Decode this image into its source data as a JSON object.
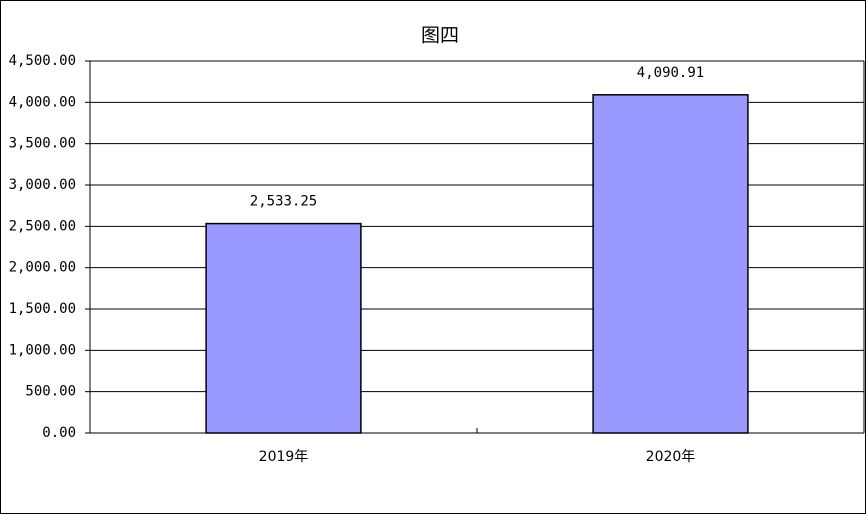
{
  "chart_data": {
    "type": "bar",
    "title": "图四",
    "categories": [
      "2019年",
      "2020年"
    ],
    "values": [
      2533.25,
      4090.91
    ],
    "value_labels": [
      "2,533.25",
      "4,090.91"
    ],
    "color": "#9999ff",
    "ylim": [
      0,
      4500
    ],
    "yticks": [
      {
        "value": 0,
        "label": "0.00"
      },
      {
        "value": 500,
        "label": "500.00"
      },
      {
        "value": 1000,
        "label": "1,000.00"
      },
      {
        "value": 1500,
        "label": "1,500.00"
      },
      {
        "value": 2000,
        "label": "2,000.00"
      },
      {
        "value": 2500,
        "label": "2,500.00"
      },
      {
        "value": 3000,
        "label": "3,000.00"
      },
      {
        "value": 3500,
        "label": "3,500.00"
      },
      {
        "value": 4000,
        "label": "4,000.00"
      },
      {
        "value": 4500,
        "label": "4,500.00"
      }
    ],
    "grid": true
  }
}
